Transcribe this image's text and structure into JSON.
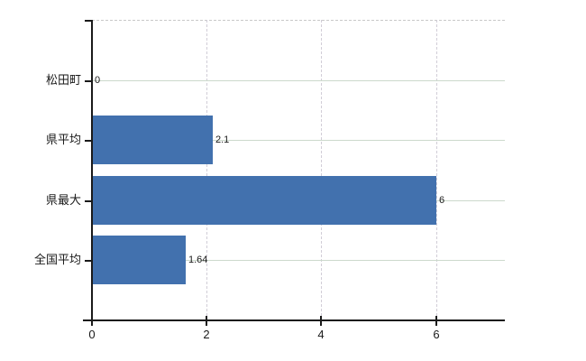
{
  "chart_data": {
    "type": "bar",
    "orientation": "horizontal",
    "title": "",
    "xlabel": "",
    "ylabel": "",
    "categories": [
      "松田町",
      "県平均",
      "県最大",
      "全国平均"
    ],
    "values": [
      0,
      2.1,
      6,
      1.64
    ],
    "value_labels": [
      "0",
      "2.1",
      "6",
      "1.64"
    ],
    "x_ticks": [
      0,
      2,
      4,
      6
    ],
    "x_tick_labels": [
      "0",
      "2",
      "4",
      "6"
    ],
    "xlim": [
      0,
      7.2
    ],
    "grid": true,
    "legend": false,
    "colors": {
      "bar": "#4271ae",
      "background": "#ffffff",
      "axis": "#1a1a1a",
      "h_gridline": "#ccd9cc",
      "v_gridline": "#d1cdd7",
      "top_border": "#c9c9c9",
      "text": "#1a1a1a"
    }
  }
}
